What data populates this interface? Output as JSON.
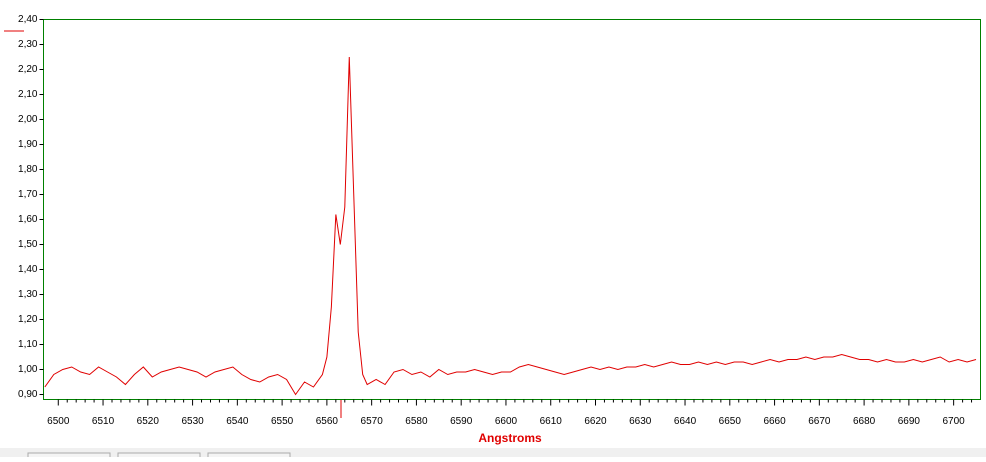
{
  "chart_data": {
    "type": "line",
    "x_label": "Angstroms",
    "x": [
      6497,
      6499,
      6501,
      6503,
      6505,
      6507,
      6509,
      6511,
      6513,
      6515,
      6517,
      6519,
      6521,
      6523,
      6525,
      6527,
      6529,
      6531,
      6533,
      6535,
      6537,
      6539,
      6541,
      6543,
      6545,
      6547,
      6549,
      6551,
      6553,
      6555,
      6557,
      6559,
      6560,
      6561,
      6562,
      6563,
      6564,
      6565,
      6566,
      6567,
      6568,
      6569,
      6571,
      6573,
      6575,
      6577,
      6579,
      6581,
      6583,
      6585,
      6587,
      6589,
      6591,
      6593,
      6595,
      6597,
      6599,
      6601,
      6603,
      6605,
      6607,
      6609,
      6611,
      6613,
      6615,
      6617,
      6619,
      6621,
      6623,
      6625,
      6627,
      6629,
      6631,
      6633,
      6635,
      6637,
      6639,
      6641,
      6643,
      6645,
      6647,
      6649,
      6651,
      6653,
      6655,
      6657,
      6659,
      6661,
      6663,
      6665,
      6667,
      6669,
      6671,
      6673,
      6675,
      6677,
      6679,
      6681,
      6683,
      6685,
      6687,
      6689,
      6691,
      6693,
      6695,
      6697,
      6699,
      6701,
      6703,
      6705
    ],
    "values": [
      0.93,
      0.98,
      1.0,
      1.01,
      0.99,
      0.98,
      1.01,
      0.99,
      0.97,
      0.94,
      0.98,
      1.01,
      0.97,
      0.99,
      1.0,
      1.01,
      1.0,
      0.99,
      0.97,
      0.99,
      1.0,
      1.01,
      0.98,
      0.96,
      0.95,
      0.97,
      0.98,
      0.96,
      0.9,
      0.95,
      0.93,
      0.98,
      1.05,
      1.25,
      1.62,
      1.5,
      1.65,
      2.25,
      1.7,
      1.15,
      0.98,
      0.94,
      0.96,
      0.94,
      0.99,
      1.0,
      0.98,
      0.99,
      0.97,
      1.0,
      0.98,
      0.99,
      0.99,
      1.0,
      0.99,
      0.98,
      0.99,
      0.99,
      1.01,
      1.02,
      1.01,
      1.0,
      0.99,
      0.98,
      0.99,
      1.0,
      1.01,
      1.0,
      1.01,
      1.0,
      1.01,
      1.01,
      1.02,
      1.01,
      1.02,
      1.03,
      1.02,
      1.02,
      1.03,
      1.02,
      1.03,
      1.02,
      1.03,
      1.03,
      1.02,
      1.03,
      1.04,
      1.03,
      1.04,
      1.04,
      1.05,
      1.04,
      1.05,
      1.05,
      1.06,
      1.05,
      1.04,
      1.04,
      1.03,
      1.04,
      1.03,
      1.03,
      1.04,
      1.03,
      1.04,
      1.05,
      1.03,
      1.04,
      1.03,
      1.04
    ],
    "color": "#e00000",
    "xlim": [
      6496.7,
      6706
    ],
    "xticks": [
      6500,
      6510,
      6520,
      6530,
      6540,
      6550,
      6560,
      6570,
      6580,
      6590,
      6600,
      6610,
      6620,
      6630,
      6640,
      6650,
      6660,
      6670,
      6680,
      6690,
      6700
    ],
    "ylim": [
      0.88,
      2.4
    ],
    "yticks": [
      {
        "value": 0.9,
        "label": "0,90"
      },
      {
        "value": 1.0,
        "label": "1,00"
      },
      {
        "value": 1.1,
        "label": "1,10"
      },
      {
        "value": 1.2,
        "label": "1,20"
      },
      {
        "value": 1.3,
        "label": "1,30"
      },
      {
        "value": 1.4,
        "label": "1,40"
      },
      {
        "value": 1.5,
        "label": "1,50"
      },
      {
        "value": 1.6,
        "label": "1,60"
      },
      {
        "value": 1.7,
        "label": "1,70"
      },
      {
        "value": 1.8,
        "label": "1,80"
      },
      {
        "value": 1.9,
        "label": "1,90"
      },
      {
        "value": 2.0,
        "label": "2,00"
      },
      {
        "value": 2.1,
        "label": "2,10"
      },
      {
        "value": 2.2,
        "label": "2,20"
      },
      {
        "value": 2.3,
        "label": "2,30"
      },
      {
        "value": 2.4,
        "label": "2,40"
      }
    ],
    "grid": false
  }
}
